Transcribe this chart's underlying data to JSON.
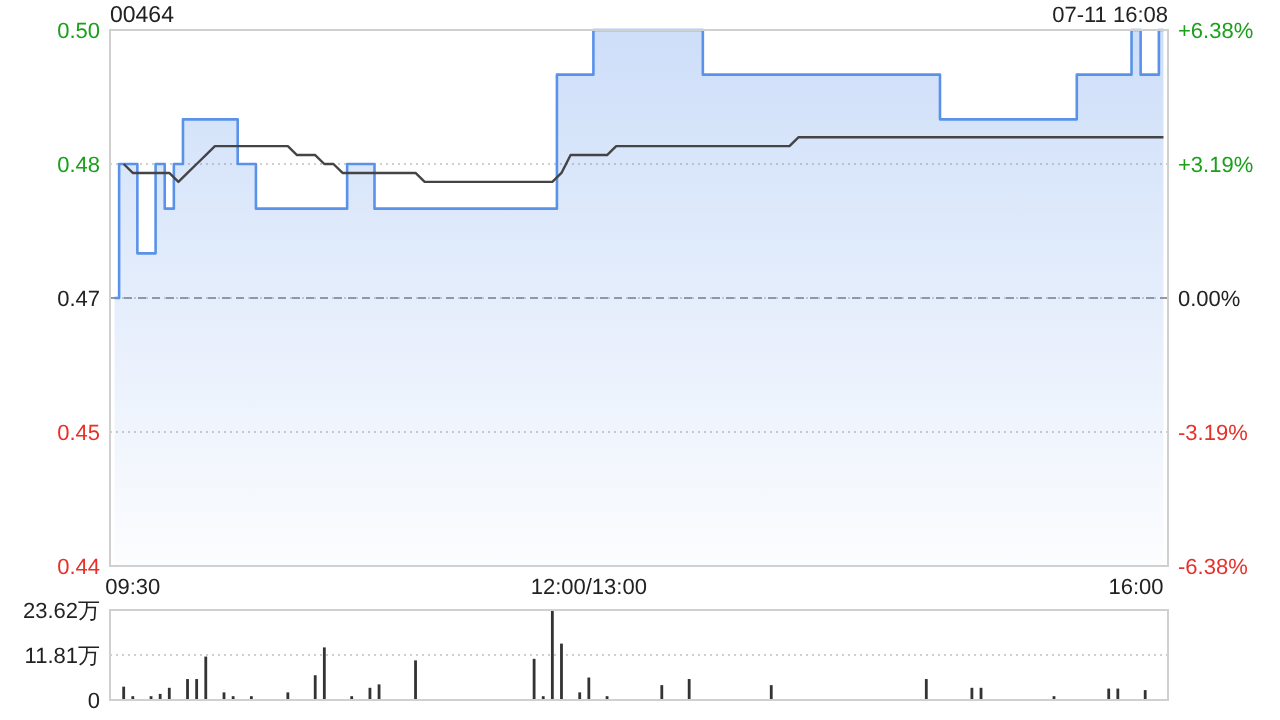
{
  "chart_data": [
    {
      "type": "step",
      "title": "00464",
      "subtitle": "07-11 16:08",
      "categories": [
        null,
        null,
        "09:30",
        null,
        null,
        null,
        null,
        null,
        null,
        null,
        null,
        null,
        null,
        null,
        null,
        null,
        null,
        null,
        null,
        null,
        null,
        null,
        null,
        null,
        null,
        null,
        null,
        null,
        null,
        null,
        null,
        null,
        null,
        null,
        null,
        null,
        null,
        null,
        null,
        null,
        null,
        null,
        null,
        null,
        null,
        null,
        null,
        null,
        null,
        null,
        null,
        null,
        "12:00/13:00",
        null,
        null,
        null,
        null,
        null,
        null,
        null,
        null,
        null,
        null,
        null,
        null,
        null,
        null,
        null,
        null,
        null,
        null,
        null,
        null,
        null,
        null,
        null,
        null,
        null,
        null,
        null,
        null,
        null,
        null,
        null,
        null,
        null,
        null,
        null,
        null,
        null,
        null,
        null,
        null,
        null,
        null,
        null,
        null,
        null,
        null,
        null,
        null,
        null,
        null,
        null,
        null,
        null,
        null,
        null,
        null,
        null,
        null,
        null,
        "16:00",
        null,
        null,
        null
      ],
      "ylim": [
        0.44,
        0.5
      ],
      "yticks": [
        {
          "value": 0.44,
          "label": "0.44"
        },
        {
          "value": 0.455,
          "label": "0.45"
        },
        {
          "value": 0.47,
          "label": "0.47"
        },
        {
          "value": 0.485,
          "label": "0.48"
        },
        {
          "value": 0.5,
          "label": "0.50"
        }
      ],
      "y2lim": [
        -6.38,
        6.38
      ],
      "y2ticks": [
        {
          "value": -6.38,
          "label": "-6.38%"
        },
        {
          "value": -3.19,
          "label": "-3.19%"
        },
        {
          "value": 0,
          "label": "0.00%"
        },
        {
          "value": 3.19,
          "label": "+3.19%"
        },
        {
          "value": 6.38,
          "label": "+6.38%"
        }
      ],
      "grid": "y",
      "ref_lines": [
        {
          "axis": "y",
          "value": 0.47,
          "line_style": "dashed",
          "color": "#999999"
        }
      ],
      "series": [
        {
          "type": "area",
          "color": "#5a92ea",
          "values": [
            0.47,
            0.485,
            0.485,
            0.475,
            0.475,
            0.485,
            0.48,
            0.485,
            0.49,
            0.49,
            0.49,
            0.49,
            0.49,
            0.49,
            0.485,
            0.485,
            0.48,
            0.48,
            0.48,
            0.48,
            0.48,
            0.48,
            0.48,
            0.48,
            0.48,
            0.48,
            0.485,
            0.485,
            0.485,
            0.48,
            0.48,
            0.48,
            0.48,
            0.48,
            0.48,
            0.48,
            0.48,
            0.48,
            0.48,
            0.48,
            0.48,
            0.48,
            0.48,
            0.48,
            0.48,
            0.48,
            0.48,
            0.48,
            0.48,
            0.495,
            0.495,
            0.495,
            0.495,
            0.5,
            0.5,
            0.5,
            0.5,
            0.5,
            0.5,
            0.5,
            0.5,
            0.5,
            0.5,
            0.5,
            0.5,
            0.495,
            0.495,
            0.495,
            0.495,
            0.495,
            0.495,
            0.495,
            0.495,
            0.495,
            0.495,
            0.495,
            0.495,
            0.495,
            0.495,
            0.495,
            0.495,
            0.495,
            0.495,
            0.495,
            0.495,
            0.495,
            0.495,
            0.495,
            0.495,
            0.495,
            0.495,
            0.49,
            0.49,
            0.49,
            0.49,
            0.49,
            0.49,
            0.49,
            0.49,
            0.49,
            0.49,
            0.49,
            0.49,
            0.49,
            0.49,
            0.49,
            0.495,
            0.495,
            0.495,
            0.495,
            0.495,
            0.495,
            0.5,
            0.495,
            0.495,
            0.5
          ]
        },
        {
          "type": "line",
          "color": "#444444",
          "values": [
            null,
            0.485,
            0.484,
            0.484,
            0.484,
            0.484,
            0.484,
            0.483,
            0.484,
            0.485,
            0.486,
            0.487,
            0.487,
            0.487,
            0.487,
            0.487,
            0.487,
            0.487,
            0.487,
            0.487,
            0.486,
            0.486,
            0.486,
            0.485,
            0.485,
            0.484,
            0.484,
            0.484,
            0.484,
            0.484,
            0.484,
            0.484,
            0.484,
            0.484,
            0.483,
            0.483,
            0.483,
            0.483,
            0.483,
            0.483,
            0.483,
            0.483,
            0.483,
            0.483,
            0.483,
            0.483,
            0.483,
            0.483,
            0.483,
            0.484,
            0.486,
            0.486,
            0.486,
            0.486,
            0.486,
            0.487,
            0.487,
            0.487,
            0.487,
            0.487,
            0.487,
            0.487,
            0.487,
            0.487,
            0.487,
            0.487,
            0.487,
            0.487,
            0.487,
            0.487,
            0.487,
            0.487,
            0.487,
            0.487,
            0.487,
            0.488,
            0.488,
            0.488,
            0.488,
            0.488,
            0.488,
            0.488,
            0.488,
            0.488,
            0.488,
            0.488,
            0.488,
            0.488,
            0.488,
            0.488,
            0.488,
            0.488,
            0.488,
            0.488,
            0.488,
            0.488,
            0.488,
            0.488,
            0.488,
            0.488,
            0.488,
            0.488,
            0.488,
            0.488,
            0.488,
            0.488,
            0.488,
            0.488,
            0.488,
            0.488,
            0.488,
            0.488,
            0.488,
            0.488,
            0.488,
            0.488
          ]
        }
      ]
    },
    {
      "type": "bar",
      "categories": [
        null,
        null,
        null,
        null,
        null,
        null,
        null,
        null,
        null,
        null,
        null,
        null,
        null,
        null,
        null,
        null,
        null,
        null,
        null,
        null,
        null,
        null,
        null,
        null,
        null,
        null,
        null,
        null,
        null,
        null,
        null,
        null,
        null,
        null,
        null,
        null,
        null,
        null,
        null,
        null,
        null,
        null,
        null,
        null,
        null,
        null,
        null,
        null,
        null,
        null,
        null,
        null,
        null,
        null,
        null,
        null,
        null,
        null,
        null,
        null,
        null,
        null,
        null,
        null,
        null,
        null,
        null,
        null,
        null,
        null,
        null,
        null,
        null,
        null,
        null,
        null,
        null,
        null,
        null,
        null,
        null,
        null,
        null,
        null,
        null,
        null,
        null,
        null,
        null,
        null,
        null,
        null,
        null,
        null,
        null,
        null,
        null,
        null,
        null,
        null,
        null,
        null,
        null,
        null,
        null,
        null,
        null,
        null,
        null,
        null,
        null,
        null,
        null,
        null,
        null,
        null
      ],
      "ylim": [
        0,
        23.62
      ],
      "yticks": [
        0,
        {
          "value": 11.81,
          "label": "11.81万"
        },
        {
          "value": 23.62,
          "label": "23.62万"
        }
      ],
      "grid": "y",
      "tick_labels": "y",
      "series": [
        {
          "color": "#333333",
          "values": [
            null,
            3.5,
            1,
            null,
            1,
            1.6,
            3.2,
            null,
            5.5,
            5.5,
            11.4,
            null,
            2,
            1,
            null,
            1,
            null,
            null,
            null,
            2,
            null,
            null,
            6.5,
            13.8,
            null,
            null,
            1,
            null,
            3.2,
            4.1,
            null,
            null,
            null,
            10.4,
            null,
            null,
            null,
            null,
            null,
            null,
            null,
            null,
            null,
            null,
            null,
            null,
            10.8,
            1,
            23.6,
            14.8,
            null,
            2,
            5.9,
            null,
            1,
            null,
            null,
            null,
            null,
            null,
            3.9,
            null,
            null,
            5.5,
            null,
            null,
            null,
            null,
            null,
            null,
            null,
            null,
            3.9,
            null,
            null,
            null,
            null,
            null,
            null,
            null,
            null,
            null,
            null,
            null,
            null,
            null,
            null,
            null,
            null,
            5.5,
            null,
            null,
            null,
            null,
            3.2,
            3.2,
            null,
            null,
            null,
            null,
            null,
            null,
            null,
            1,
            null,
            null,
            null,
            null,
            null,
            3,
            3,
            null,
            null,
            2.6,
            null,
            null
          ]
        }
      ]
    }
  ]
}
